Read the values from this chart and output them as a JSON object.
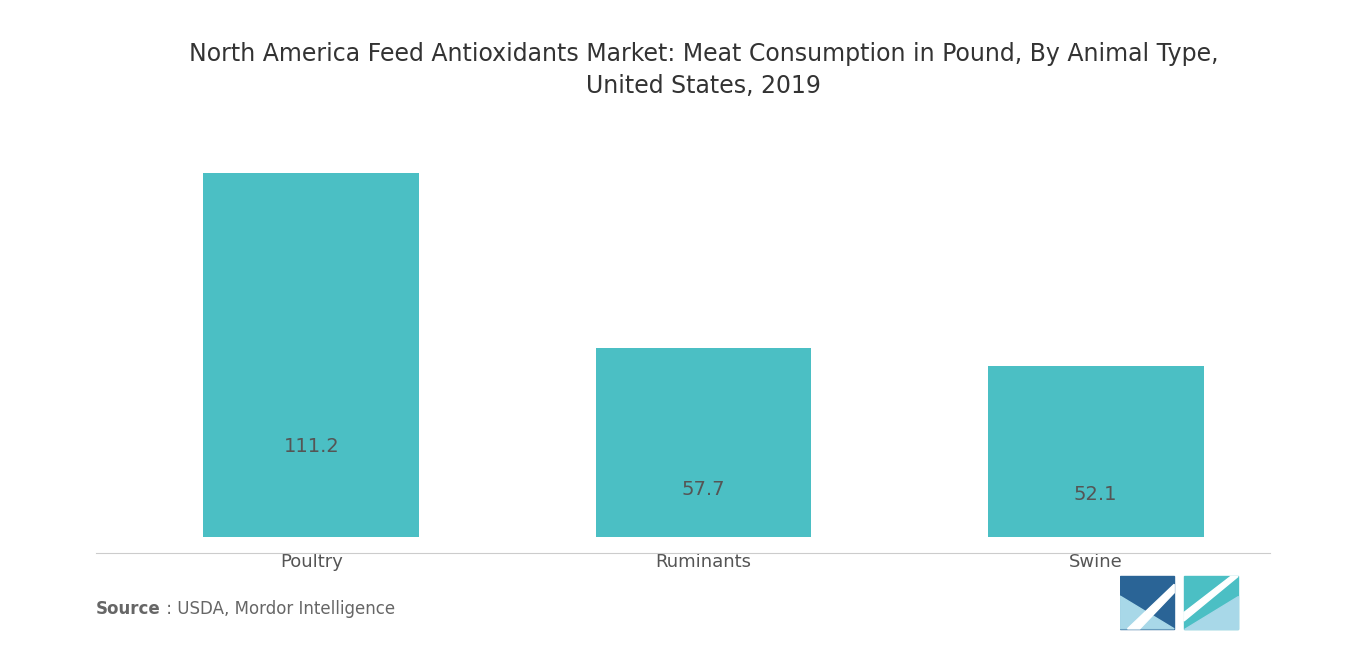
{
  "title_line1": "North America Feed Antioxidants Market: Meat Consumption in Pound, By Animal Type,",
  "title_line2": "United States, 2019",
  "categories": [
    "Poultry",
    "Ruminants",
    "Swine"
  ],
  "values": [
    111.2,
    57.7,
    52.1
  ],
  "bar_color": "#4BBFC4",
  "label_color": "#555555",
  "title_color": "#333333",
  "background_color": "#ffffff",
  "source_bold": "Source",
  "source_rest": " : USDA, Mordor Intelligence",
  "ylim": [
    0,
    128
  ],
  "bar_width": 0.55,
  "title_fontsize": 17,
  "tick_fontsize": 13,
  "source_fontsize": 12,
  "value_fontsize": 14,
  "logo_left_color": "#2A6496",
  "logo_right_color": "#4BBFC4",
  "logo_light_color": "#A8D8E8"
}
